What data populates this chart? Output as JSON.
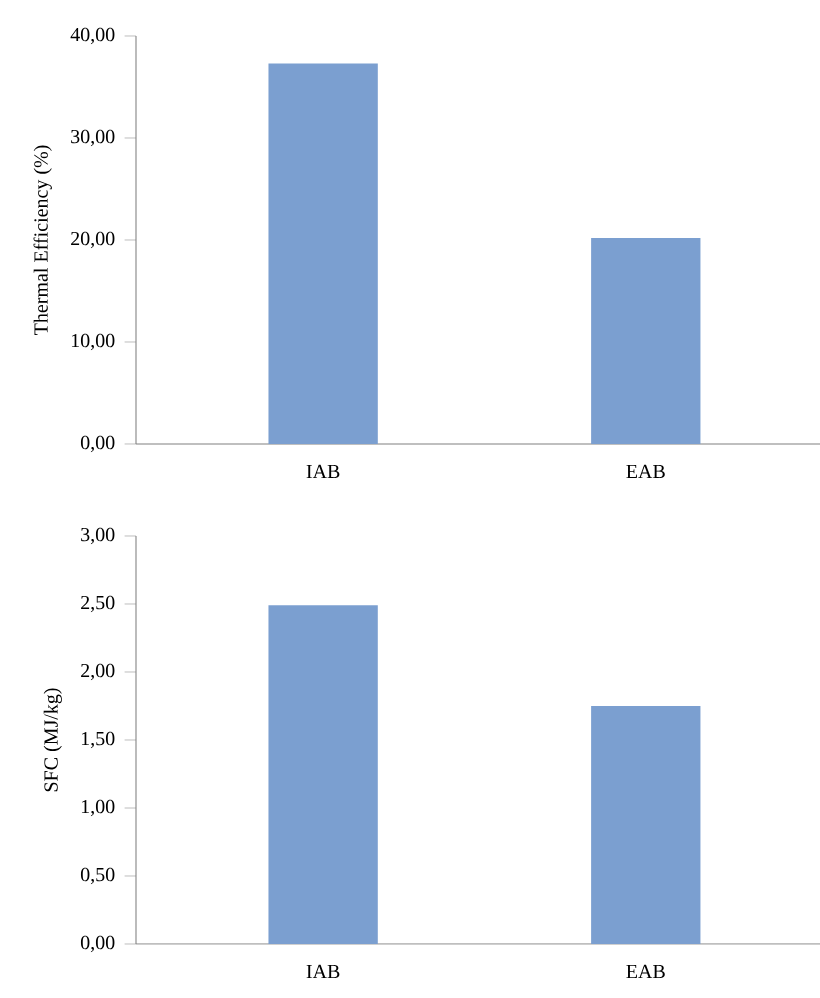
{
  "chart_data": [
    {
      "type": "bar",
      "ylabel": "Thermal Efficiency (%)",
      "categories": [
        "IAB",
        "EAB"
      ],
      "values": [
        37.3,
        20.2
      ],
      "color": "#7b9fd0",
      "ylim": [
        0,
        40
      ],
      "yticks": [
        {
          "value": 0,
          "label": "0,00"
        },
        {
          "value": 10,
          "label": "10,00"
        },
        {
          "value": 20,
          "label": "20,00"
        },
        {
          "value": 30,
          "label": "30,00"
        },
        {
          "value": 40,
          "label": "40,00"
        }
      ]
    },
    {
      "type": "bar",
      "ylabel": "SFC (MJ/kg)",
      "categories": [
        "IAB",
        "EAB"
      ],
      "values": [
        2.49,
        1.75
      ],
      "color": "#7b9fd0",
      "ylim": [
        0,
        3
      ],
      "yticks": [
        {
          "value": 0,
          "label": "0,00"
        },
        {
          "value": 0.5,
          "label": "0,50"
        },
        {
          "value": 1,
          "label": "1,00"
        },
        {
          "value": 1.5,
          "label": "1,50"
        },
        {
          "value": 2,
          "label": "2,00"
        },
        {
          "value": 2.5,
          "label": "2,50"
        },
        {
          "value": 3,
          "label": "3,00"
        }
      ]
    }
  ]
}
